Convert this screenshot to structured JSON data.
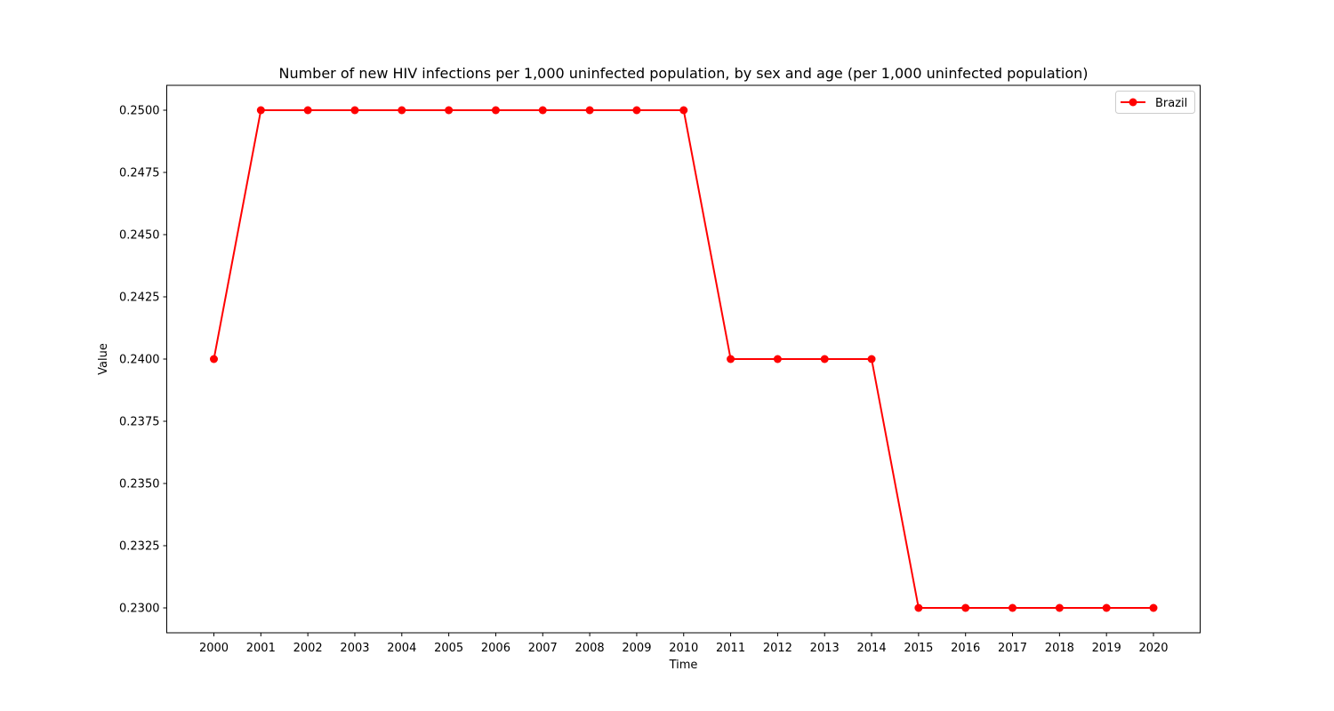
{
  "chart_data": {
    "type": "line",
    "title": "Number of new HIV infections per 1,000 uninfected population, by sex and age (per 1,000 uninfected population)",
    "xlabel": "Time",
    "ylabel": "Value",
    "x": [
      "2000",
      "2001",
      "2002",
      "2003",
      "2004",
      "2005",
      "2006",
      "2007",
      "2008",
      "2009",
      "2010",
      "2011",
      "2012",
      "2013",
      "2014",
      "2015",
      "2016",
      "2017",
      "2018",
      "2019",
      "2020"
    ],
    "series": [
      {
        "name": "Brazil",
        "color": "#ff0000",
        "marker": "circle",
        "values": [
          0.24,
          0.25,
          0.25,
          0.25,
          0.25,
          0.25,
          0.25,
          0.25,
          0.25,
          0.25,
          0.25,
          0.24,
          0.24,
          0.24,
          0.24,
          0.23,
          0.23,
          0.23,
          0.23,
          0.23,
          0.23
        ]
      }
    ],
    "ylim": [
      0.229,
      0.251
    ],
    "yticks": [
      "0.2300",
      "0.2325",
      "0.2350",
      "0.2375",
      "0.2400",
      "0.2425",
      "0.2450",
      "0.2475",
      "0.2500"
    ],
    "grid": false,
    "legend_position": "top-right"
  }
}
